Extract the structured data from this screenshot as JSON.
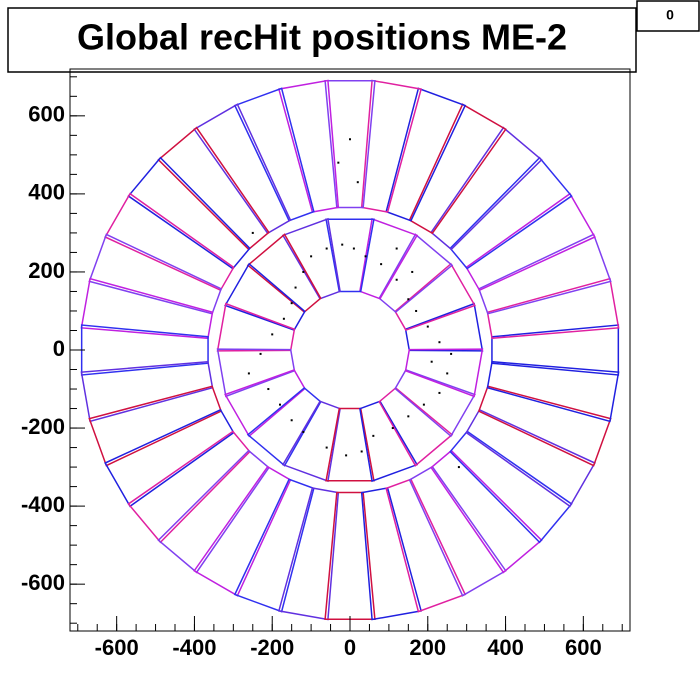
{
  "chart_data": {
    "type": "scatter",
    "title": "Global recHit positions ME-2",
    "stats_label": "0",
    "xlim": [
      -720,
      720
    ],
    "ylim": [
      -720,
      720
    ],
    "xticks": [
      -600,
      -400,
      -200,
      0,
      200,
      400,
      600
    ],
    "yticks": [
      -600,
      -400,
      -200,
      0,
      200,
      400,
      600
    ],
    "grid": false,
    "series": [
      {
        "color": "#000000",
        "x": [
          -150,
          -140,
          -120,
          -100,
          -60,
          -20,
          10,
          40,
          80,
          120,
          150,
          170,
          200,
          230,
          260,
          -170,
          -200,
          -230,
          -260,
          -210,
          -180,
          -150,
          -120,
          -60,
          -10,
          30,
          60,
          110,
          150,
          190,
          230,
          250,
          210,
          160,
          120,
          -30,
          0,
          20,
          -250,
          280
        ],
        "y": [
          120,
          160,
          200,
          240,
          260,
          270,
          260,
          240,
          220,
          180,
          130,
          100,
          60,
          20,
          -10,
          80,
          40,
          -10,
          -60,
          -100,
          -140,
          -180,
          -210,
          -250,
          -270,
          -260,
          -220,
          -200,
          -170,
          -140,
          -110,
          -60,
          -30,
          200,
          260,
          480,
          540,
          430,
          300,
          -300
        ]
      }
    ]
  }
}
